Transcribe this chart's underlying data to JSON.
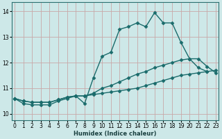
{
  "xlabel": "Humidex (Indice chaleur)",
  "background_color": "#cde8e8",
  "grid_color": "#c8a8a8",
  "line_color": "#1a6b6b",
  "x_ticks": [
    0,
    1,
    2,
    3,
    4,
    5,
    6,
    7,
    8,
    9,
    10,
    11,
    12,
    13,
    14,
    15,
    16,
    17,
    18,
    19,
    20,
    21,
    22,
    23
  ],
  "y_ticks": [
    10,
    11,
    12,
    13,
    14
  ],
  "xlim": [
    -0.3,
    23.3
  ],
  "ylim": [
    9.75,
    14.35
  ],
  "series": [
    {
      "x": [
        0,
        1,
        2,
        3,
        4,
        5,
        6,
        7,
        8,
        9,
        10,
        11,
        12,
        13,
        14,
        15,
        16,
        17,
        18,
        19,
        20,
        21,
        22,
        23
      ],
      "y": [
        10.6,
        10.4,
        10.35,
        10.35,
        10.35,
        10.5,
        10.6,
        10.7,
        10.4,
        11.4,
        12.25,
        12.4,
        13.3,
        13.4,
        13.55,
        13.4,
        13.95,
        13.55,
        13.55,
        12.8,
        12.15,
        11.8,
        11.65,
        null
      ]
    },
    {
      "x": [
        0,
        1,
        2,
        3,
        4,
        5,
        6,
        7,
        8,
        9,
        10,
        11,
        12,
        13,
        14,
        15,
        16,
        17,
        18,
        19,
        20,
        21,
        22,
        23
      ],
      "y": [
        10.6,
        10.5,
        10.45,
        10.45,
        10.45,
        10.55,
        10.65,
        10.7,
        10.7,
        10.8,
        11.0,
        11.1,
        11.25,
        11.4,
        11.55,
        11.65,
        11.8,
        11.9,
        12.0,
        12.1,
        12.15,
        12.15,
        11.85,
        11.6
      ]
    },
    {
      "x": [
        0,
        1,
        2,
        3,
        4,
        5,
        6,
        7,
        8,
        9,
        10,
        11,
        12,
        13,
        14,
        15,
        16,
        17,
        18,
        19,
        20,
        21,
        22,
        23
      ],
      "y": [
        10.6,
        10.5,
        10.45,
        10.45,
        10.45,
        10.55,
        10.65,
        10.7,
        10.7,
        10.75,
        10.8,
        10.85,
        10.9,
        10.95,
        11.0,
        11.1,
        11.2,
        11.3,
        11.4,
        11.5,
        11.55,
        11.6,
        11.65,
        11.7
      ]
    }
  ],
  "marker": "D",
  "marker_size": 2.5,
  "line_width": 1.0
}
